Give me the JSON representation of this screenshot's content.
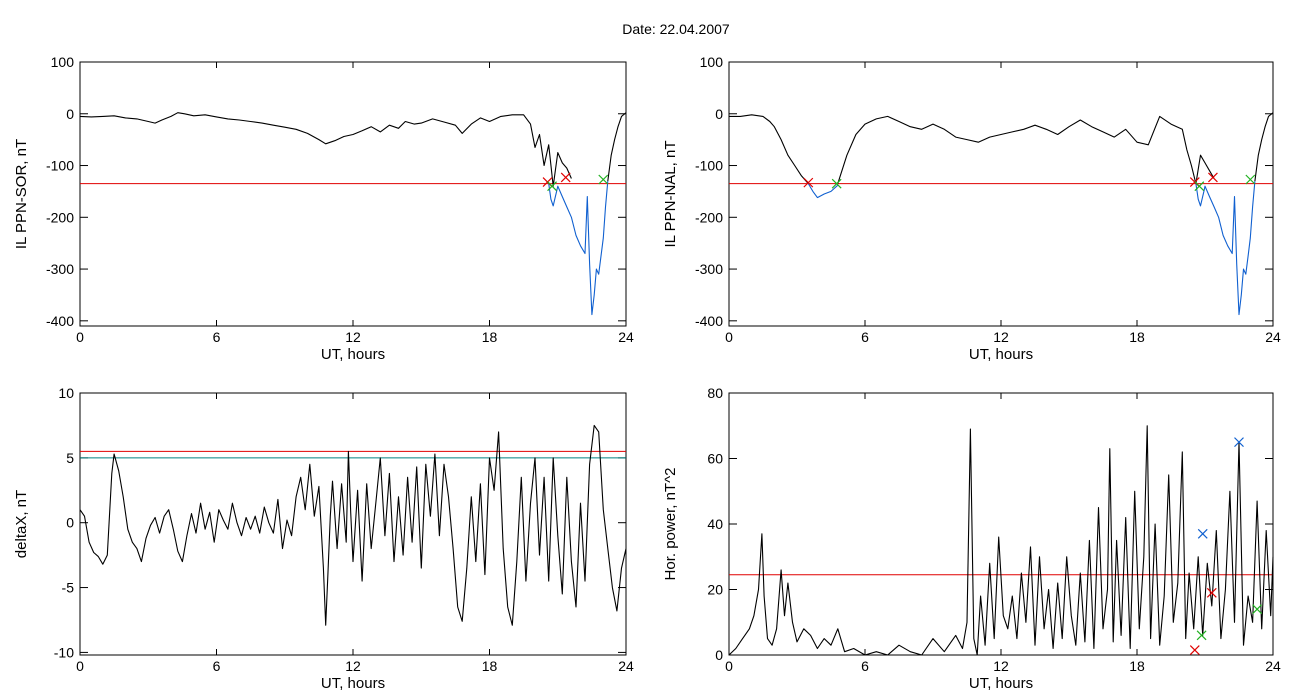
{
  "figure": {
    "title": "Date:  22.04.2007"
  },
  "chart_data": [
    {
      "type": "line",
      "panel": "top-left",
      "xlabel": "UT, hours",
      "ylabel": "IL PPN-SOR, nT",
      "xlim": [
        0,
        24
      ],
      "ylim": [
        -410,
        100
      ],
      "xticks": [
        "0",
        "6",
        "12",
        "18",
        "24"
      ],
      "xtick_values": [
        0,
        6,
        12,
        18,
        24
      ],
      "yticks": [
        "100",
        "0",
        "-100",
        "-200",
        "-300",
        "-400"
      ],
      "ytick_values": [
        100,
        0,
        -100,
        -200,
        -300,
        -400
      ],
      "grid": false,
      "hlines": [
        {
          "y": -135,
          "color": "#e00000"
        }
      ],
      "series": [
        {
          "color": "#000000",
          "x": [
            0,
            0.5,
            1,
            1.5,
            2,
            2.5,
            3,
            3.3,
            3.6,
            4,
            4.3,
            4.6,
            5,
            5.5,
            6,
            6.5,
            7,
            7.5,
            8,
            8.5,
            9,
            9.5,
            10,
            10.5,
            10.8,
            11.2,
            11.6,
            12,
            12.4,
            12.8,
            13.2,
            13.6,
            14,
            14.3,
            14.7,
            15,
            15.5,
            16,
            16.5,
            16.8,
            17.2,
            17.6,
            18,
            18.5,
            19,
            19.5,
            19.8,
            20.0,
            20.2,
            20.4,
            20.6,
            20.8,
            21.0,
            21.2,
            21.4,
            21.6
          ],
          "y": [
            -5,
            -6,
            -5,
            -4,
            -8,
            -10,
            -15,
            -18,
            -12,
            -5,
            2,
            0,
            -4,
            -2,
            -6,
            -10,
            -12,
            -15,
            -18,
            -22,
            -26,
            -30,
            -38,
            -50,
            -58,
            -52,
            -44,
            -40,
            -33,
            -25,
            -35,
            -22,
            -28,
            -15,
            -20,
            -18,
            -10,
            -16,
            -22,
            -38,
            -20,
            -8,
            -15,
            -5,
            -2,
            -2,
            -20,
            -65,
            -40,
            -100,
            -60,
            -140,
            -75,
            -95,
            -105,
            -125
          ]
        },
        {
          "color": "#1060d0",
          "x": [
            20.6,
            20.7,
            20.8,
            20.95,
            21.0,
            21.2,
            21.4,
            21.6,
            21.8,
            22.0,
            22.2,
            22.3,
            22.4,
            22.5,
            22.6,
            22.7,
            22.8,
            22.9,
            23.0,
            23.1,
            23.2
          ],
          "y": [
            -135,
            -165,
            -178,
            -150,
            -140,
            -160,
            -180,
            -200,
            -235,
            -255,
            -270,
            -160,
            -290,
            -388,
            -350,
            -300,
            -310,
            -275,
            -240,
            -180,
            -130
          ]
        },
        {
          "color": "#000000",
          "x": [
            23.2,
            23.35,
            23.5,
            23.65,
            23.8,
            24
          ],
          "y": [
            -130,
            -80,
            -50,
            -25,
            -5,
            2
          ]
        }
      ],
      "markers": [
        {
          "x": 20.55,
          "y": -132,
          "color": "#e00000"
        },
        {
          "x": 20.75,
          "y": -140,
          "color": "#20b020"
        },
        {
          "x": 21.35,
          "y": -123,
          "color": "#e00000"
        },
        {
          "x": 23.0,
          "y": -127,
          "color": "#20b020"
        }
      ]
    },
    {
      "type": "line",
      "panel": "top-right",
      "xlabel": "UT, hours",
      "ylabel": "IL PPN-NAL, nT",
      "xlim": [
        0,
        24
      ],
      "ylim": [
        -410,
        100
      ],
      "xticks": [
        "0",
        "6",
        "12",
        "18",
        "24"
      ],
      "xtick_values": [
        0,
        6,
        12,
        18,
        24
      ],
      "yticks": [
        "100",
        "0",
        "-100",
        "-200",
        "-300",
        "-400"
      ],
      "ytick_values": [
        100,
        0,
        -100,
        -200,
        -300,
        -400
      ],
      "grid": false,
      "hlines": [
        {
          "y": -135,
          "color": "#e00000"
        }
      ],
      "series": [
        {
          "color": "#000000",
          "x": [
            0,
            0.5,
            1,
            1.5,
            1.8,
            2.0,
            2.3,
            2.6,
            2.9,
            3.2,
            3.5
          ],
          "y": [
            -5,
            -5,
            -2,
            -5,
            -15,
            -25,
            -50,
            -80,
            -100,
            -120,
            -135
          ]
        },
        {
          "color": "#1060d0",
          "x": [
            3.5,
            3.7,
            3.9,
            4.2,
            4.5,
            4.8
          ],
          "y": [
            -135,
            -150,
            -162,
            -155,
            -150,
            -138
          ]
        },
        {
          "color": "#000000",
          "x": [
            4.8,
            5.2,
            5.6,
            6,
            6.5,
            7,
            7.5,
            8,
            8.5,
            9,
            9.5,
            10,
            10.5,
            11,
            11.5,
            12,
            12.5,
            13,
            13.5,
            14,
            14.5,
            15,
            15.5,
            16,
            16.5,
            17,
            17.5,
            18,
            18.5,
            19,
            19.5,
            20,
            20.2,
            20.4,
            20.6,
            20.8,
            21.0,
            21.2,
            21.4
          ],
          "y": [
            -135,
            -80,
            -40,
            -20,
            -10,
            -5,
            -15,
            -25,
            -30,
            -20,
            -30,
            -45,
            -50,
            -55,
            -45,
            -40,
            -35,
            -30,
            -22,
            -30,
            -40,
            -25,
            -12,
            -25,
            -35,
            -45,
            -30,
            -55,
            -60,
            -5,
            -20,
            -30,
            -70,
            -100,
            -135,
            -80,
            -95,
            -110,
            -125
          ]
        },
        {
          "color": "#1060d0",
          "x": [
            20.6,
            20.7,
            20.8,
            20.95,
            21.0,
            21.2,
            21.4,
            21.6,
            21.8,
            22.0,
            22.2,
            22.3,
            22.4,
            22.5,
            22.6,
            22.7,
            22.8,
            22.9,
            23.0,
            23.1,
            23.2
          ],
          "y": [
            -135,
            -165,
            -178,
            -150,
            -140,
            -160,
            -180,
            -200,
            -235,
            -255,
            -270,
            -160,
            -290,
            -388,
            -350,
            -300,
            -310,
            -275,
            -240,
            -180,
            -130
          ]
        },
        {
          "color": "#000000",
          "x": [
            23.2,
            23.35,
            23.5,
            23.65,
            23.8,
            24
          ],
          "y": [
            -130,
            -80,
            -50,
            -25,
            -5,
            2
          ]
        }
      ],
      "markers": [
        {
          "x": 3.5,
          "y": -133,
          "color": "#e00000"
        },
        {
          "x": 4.75,
          "y": -135,
          "color": "#20b020"
        },
        {
          "x": 20.55,
          "y": -132,
          "color": "#e00000"
        },
        {
          "x": 20.75,
          "y": -140,
          "color": "#20b020"
        },
        {
          "x": 21.35,
          "y": -123,
          "color": "#e00000"
        },
        {
          "x": 23.0,
          "y": -127,
          "color": "#20b020"
        }
      ]
    },
    {
      "type": "line",
      "panel": "bottom-left",
      "xlabel": "UT, hours",
      "ylabel": "deltaX, nT",
      "xlim": [
        0,
        24
      ],
      "ylim": [
        -10.2,
        10
      ],
      "xticks": [
        "0",
        "6",
        "12",
        "18",
        "24"
      ],
      "xtick_values": [
        0,
        6,
        12,
        18,
        24
      ],
      "yticks": [
        "10",
        "5",
        "0",
        "-5",
        "-10"
      ],
      "ytick_values": [
        10,
        5,
        0,
        -5,
        -10
      ],
      "grid": false,
      "hlines": [
        {
          "y": 5.5,
          "color": "#e00000"
        },
        {
          "y": 5.0,
          "color": "#008080"
        }
      ],
      "series": [
        {
          "color": "#000000",
          "x": [
            0,
            0.2,
            0.4,
            0.6,
            0.8,
            1.0,
            1.2,
            1.4,
            1.5,
            1.7,
            1.9,
            2.1,
            2.3,
            2.5,
            2.7,
            2.9,
            3.1,
            3.3,
            3.5,
            3.7,
            3.9,
            4.1,
            4.3,
            4.5,
            4.7,
            4.9,
            5.1,
            5.3,
            5.5,
            5.7,
            5.9,
            6.1,
            6.3,
            6.5,
            6.7,
            6.9,
            7.1,
            7.3,
            7.5,
            7.7,
            7.9,
            8.1,
            8.3,
            8.5,
            8.7,
            8.9,
            9.1,
            9.3,
            9.5,
            9.7,
            9.9,
            10.1,
            10.3,
            10.5,
            10.7,
            10.8,
            10.9,
            11.0,
            11.1,
            11.3,
            11.5,
            11.7,
            11.8,
            11.9,
            12.0,
            12.2,
            12.4,
            12.6,
            12.8,
            13.0,
            13.2,
            13.4,
            13.6,
            13.8,
            14.0,
            14.2,
            14.4,
            14.6,
            14.8,
            15.0,
            15.2,
            15.4,
            15.6,
            15.8,
            16.0,
            16.2,
            16.4,
            16.6,
            16.8,
            17.0,
            17.2,
            17.4,
            17.6,
            17.8,
            18.0,
            18.2,
            18.4,
            18.6,
            18.8,
            19.0,
            19.2,
            19.4,
            19.6,
            19.8,
            20.0,
            20.2,
            20.4,
            20.6,
            20.8,
            21.0,
            21.2,
            21.4,
            21.6,
            21.8,
            22.0,
            22.2,
            22.4,
            22.6,
            22.8,
            23.0,
            23.2,
            23.4,
            23.6,
            23.8,
            24
          ],
          "y": [
            1,
            0.5,
            -1.5,
            -2.3,
            -2.6,
            -3.2,
            -2.5,
            3.8,
            5.3,
            4.0,
            2.0,
            -0.5,
            -1.5,
            -2.0,
            -3.0,
            -1.2,
            -0.2,
            0.4,
            -0.8,
            0.5,
            1.0,
            -0.5,
            -2.2,
            -3.0,
            -1.0,
            0.7,
            -0.8,
            1.5,
            -0.5,
            0.8,
            -1.5,
            1.0,
            0.2,
            -0.5,
            1.5,
            0.0,
            -1.0,
            0.4,
            -0.5,
            0.5,
            -0.8,
            1.2,
            0.0,
            -0.8,
            1.8,
            -2.0,
            0.2,
            -1.0,
            2.0,
            3.5,
            1.0,
            4.5,
            0.5,
            2.8,
            -3.5,
            -7.9,
            -3.8,
            0.5,
            3.2,
            -2.0,
            3.0,
            -1.5,
            5.5,
            0.8,
            -3.0,
            2.5,
            -4.5,
            3.0,
            -2.0,
            1.5,
            5.0,
            -1.0,
            3.8,
            -3.0,
            2.0,
            -2.5,
            3.5,
            -1.5,
            4.3,
            -3.5,
            4.5,
            0.5,
            5.3,
            -1.0,
            4.5,
            2.0,
            -2.0,
            -6.5,
            -7.6,
            -3.5,
            2.0,
            -3.0,
            3.0,
            -4.0,
            5.0,
            2.5,
            7.0,
            -2.0,
            -6.5,
            -7.9,
            -3.0,
            3.5,
            -4.5,
            1.5,
            5.0,
            -2.5,
            3.5,
            -4.5,
            5.0,
            -1.0,
            -5.5,
            3.5,
            -3.0,
            -6.5,
            1.5,
            -4.5,
            4.5,
            7.5,
            7.0,
            1.0,
            -2.0,
            -5.0,
            -6.8,
            -3.5,
            -2.0
          ]
        }
      ],
      "markers": []
    },
    {
      "type": "line",
      "panel": "bottom-right",
      "xlabel": "UT, hours",
      "ylabel": "Hor. power, nT^2",
      "xlim": [
        0,
        24
      ],
      "ylim": [
        0,
        80
      ],
      "xticks": [
        "0",
        "6",
        "12",
        "18",
        "24"
      ],
      "xtick_values": [
        0,
        6,
        12,
        18,
        24
      ],
      "yticks": [
        "80",
        "60",
        "40",
        "20",
        "0"
      ],
      "ytick_values": [
        80,
        60,
        40,
        20,
        0
      ],
      "grid": false,
      "hlines": [
        {
          "y": 24.5,
          "color": "#e00000"
        }
      ],
      "series": [
        {
          "color": "#000000",
          "x": [
            0,
            0.3,
            0.6,
            0.9,
            1.1,
            1.3,
            1.45,
            1.55,
            1.7,
            1.9,
            2.1,
            2.3,
            2.45,
            2.6,
            2.8,
            3.0,
            3.3,
            3.6,
            3.9,
            4.2,
            4.5,
            4.8,
            5.1,
            5.5,
            6.0,
            6.5,
            7.0,
            7.5,
            8.0,
            8.5,
            9.0,
            9.5,
            10.0,
            10.3,
            10.5,
            10.65,
            10.8,
            10.95,
            11.1,
            11.3,
            11.5,
            11.7,
            11.9,
            12.1,
            12.3,
            12.5,
            12.7,
            12.9,
            13.1,
            13.3,
            13.5,
            13.7,
            13.9,
            14.1,
            14.3,
            14.5,
            14.7,
            14.9,
            15.1,
            15.3,
            15.5,
            15.7,
            15.9,
            16.1,
            16.3,
            16.5,
            16.7,
            16.8,
            16.95,
            17.1,
            17.3,
            17.5,
            17.7,
            17.9,
            18.1,
            18.3,
            18.45,
            18.6,
            18.8,
            19.0,
            19.2,
            19.4,
            19.6,
            19.8,
            20.0,
            20.15,
            20.3,
            20.5,
            20.7,
            20.9,
            21.1,
            21.3,
            21.5,
            21.7,
            21.9,
            22.1,
            22.3,
            22.5,
            22.7,
            22.9,
            23.1,
            23.3,
            23.5,
            23.7,
            23.9,
            24
          ],
          "y": [
            0,
            2,
            5,
            8,
            12,
            20,
            37,
            18,
            5,
            3,
            8,
            26,
            12,
            22,
            10,
            4,
            8,
            6,
            2,
            5,
            3,
            8,
            1,
            2,
            0,
            1,
            0,
            3,
            1,
            0,
            5,
            1,
            6,
            2,
            10,
            69,
            5,
            0,
            18,
            3,
            28,
            5,
            36,
            12,
            8,
            18,
            5,
            25,
            10,
            33,
            3,
            30,
            8,
            20,
            2,
            22,
            5,
            30,
            12,
            3,
            25,
            4,
            35,
            2,
            45,
            8,
            20,
            63,
            4,
            35,
            6,
            42,
            2,
            50,
            8,
            30,
            70,
            5,
            40,
            3,
            18,
            55,
            10,
            22,
            62,
            5,
            25,
            8,
            30,
            6,
            28,
            15,
            38,
            5,
            20,
            50,
            10,
            65,
            3,
            18,
            10,
            47,
            8,
            38,
            12,
            30
          ]
        }
      ],
      "markers": [
        {
          "x": 20.55,
          "y": 1.5,
          "color": "#e00000"
        },
        {
          "x": 20.85,
          "y": 6,
          "color": "#20b020"
        },
        {
          "x": 20.9,
          "y": 37,
          "color": "#1060d0"
        },
        {
          "x": 21.3,
          "y": 19,
          "color": "#e00000"
        },
        {
          "x": 22.5,
          "y": 65,
          "color": "#1060d0"
        },
        {
          "x": 23.3,
          "y": 14,
          "color": "#20b020"
        }
      ]
    }
  ]
}
